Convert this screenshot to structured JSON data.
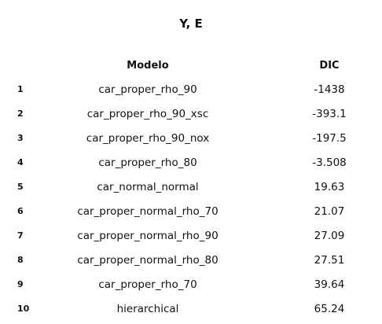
{
  "title": "Y, E",
  "columns": {
    "model": "Modelo",
    "dic": "DIC"
  },
  "rows": [
    {
      "index": "1",
      "model": "car_proper_rho_90",
      "dic": "-1438"
    },
    {
      "index": "2",
      "model": "car_proper_rho_90_xsc",
      "dic": "-393.1"
    },
    {
      "index": "3",
      "model": "car_proper_rho_90_nox",
      "dic": "-197.5"
    },
    {
      "index": "4",
      "model": "car_proper_rho_80",
      "dic": "-3.508"
    },
    {
      "index": "5",
      "model": "car_normal_normal",
      "dic": "19.63"
    },
    {
      "index": "6",
      "model": "car_proper_normal_rho_70",
      "dic": "21.07"
    },
    {
      "index": "7",
      "model": "car_proper_normal_rho_90",
      "dic": "27.09"
    },
    {
      "index": "8",
      "model": "car_proper_normal_rho_80",
      "dic": "27.51"
    },
    {
      "index": "9",
      "model": "car_proper_rho_70",
      "dic": "39.64"
    },
    {
      "index": "10",
      "model": "hierarchical",
      "dic": "65.24"
    }
  ]
}
